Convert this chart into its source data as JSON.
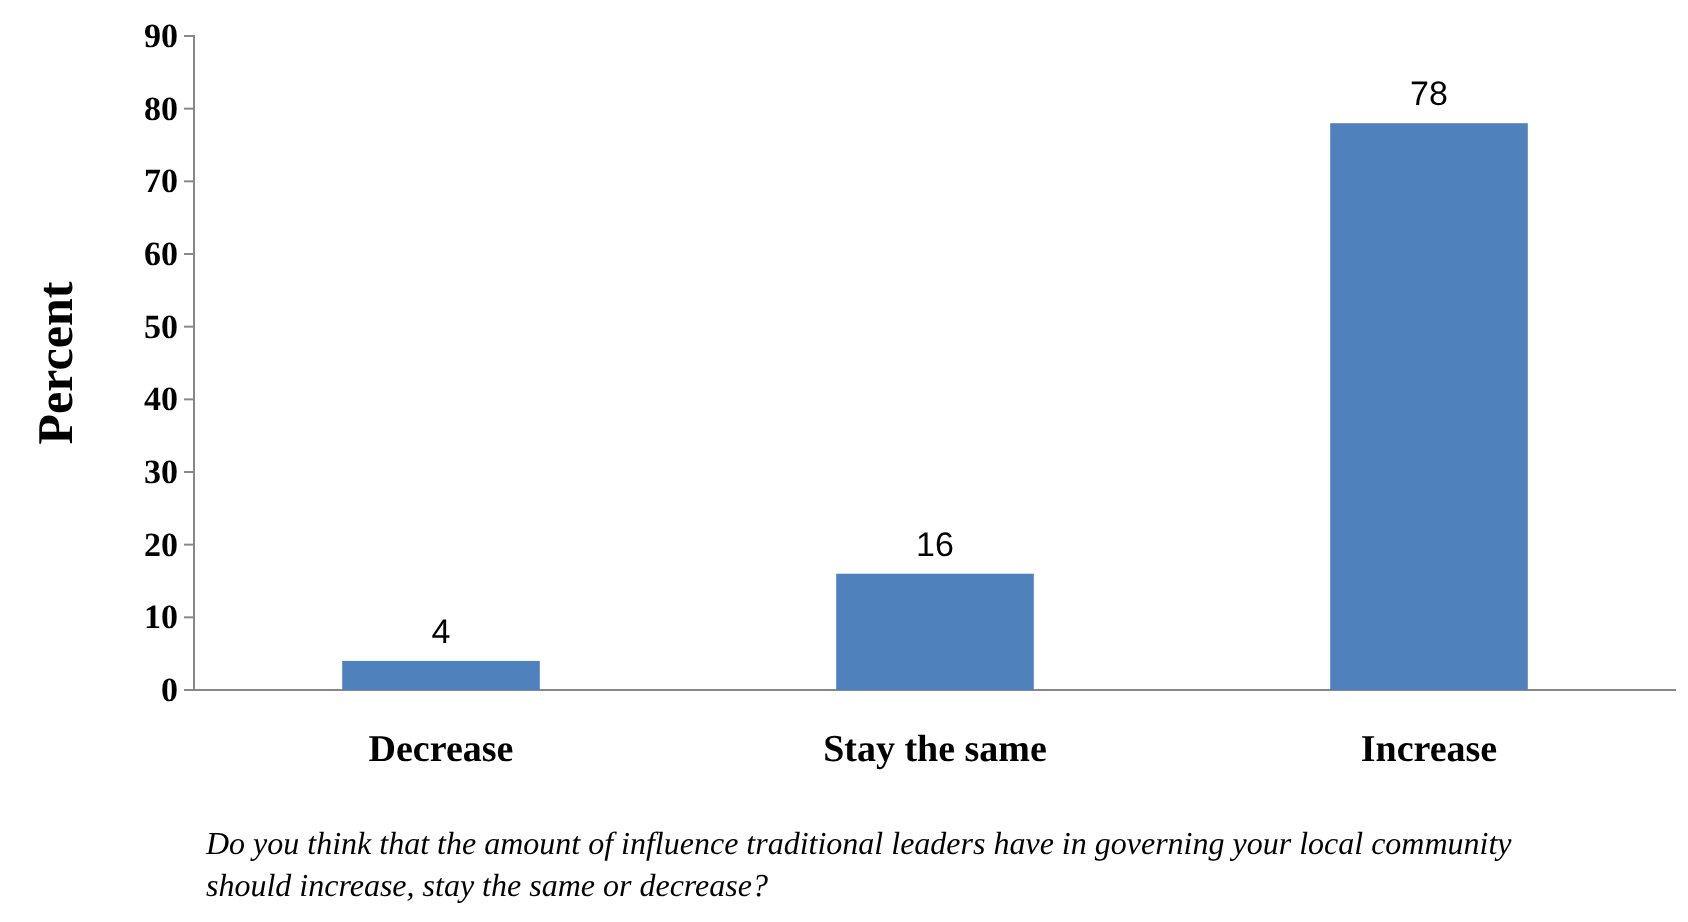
{
  "chart_data": {
    "type": "bar",
    "categories": [
      "Decrease",
      "Stay the same",
      "Increase"
    ],
    "values": [
      4,
      16,
      78
    ],
    "color": "#4f81bd",
    "ylim": [
      0,
      90
    ],
    "yticks": [
      0,
      10,
      20,
      30,
      40,
      50,
      60,
      70,
      80,
      90
    ],
    "ylabel": "Percent",
    "xlabel": "Do you think that the amount of influence traditional leaders have in governing your local community should increase, stay the same or decrease?",
    "data_labels": true,
    "grid": false
  }
}
